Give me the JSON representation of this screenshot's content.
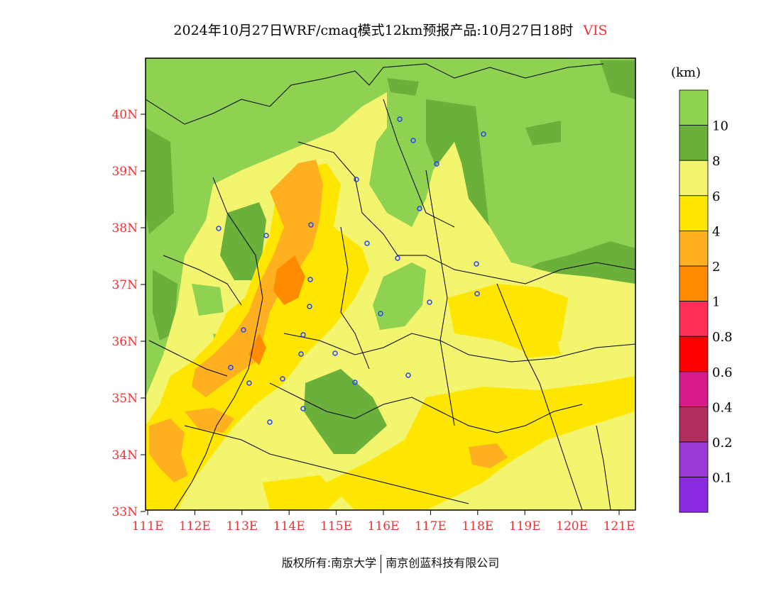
{
  "title": "2024年10月27日WRF/cmaq模式12km预报产品:10月27日18时",
  "variable": "VIS",
  "unit": "(km)",
  "lat_labels": [
    "40N",
    "39N",
    "38N",
    "37N",
    "36N",
    "35N",
    "34N",
    "33N"
  ],
  "lon_labels": [
    "111E",
    "112E",
    "113E",
    "114E",
    "115E",
    "116E",
    "117E",
    "118E",
    "119E",
    "120E",
    "121E"
  ],
  "colorbar": [
    {
      "label": "",
      "color": "#8fd150"
    },
    {
      "label": "10",
      "color": "#6ab03a"
    },
    {
      "label": "8",
      "color": "#f3f56e"
    },
    {
      "label": "6",
      "color": "#ffe600"
    },
    {
      "label": "4",
      "color": "#ffb020"
    },
    {
      "label": "2",
      "color": "#ff8c00"
    },
    {
      "label": "1",
      "color": "#ff2f56"
    },
    {
      "label": "0.8",
      "color": "#ff0000"
    },
    {
      "label": "0.6",
      "color": "#d91a8a"
    },
    {
      "label": "0.4",
      "color": "#b02e5e"
    },
    {
      "label": "0.2",
      "color": "#9a38d6"
    },
    {
      "label": "0.1",
      "color": "#8a2be2"
    }
  ],
  "footer": {
    "left": "版权所有:南京大学",
    "right": "南京创蓝科技有限公司"
  }
}
